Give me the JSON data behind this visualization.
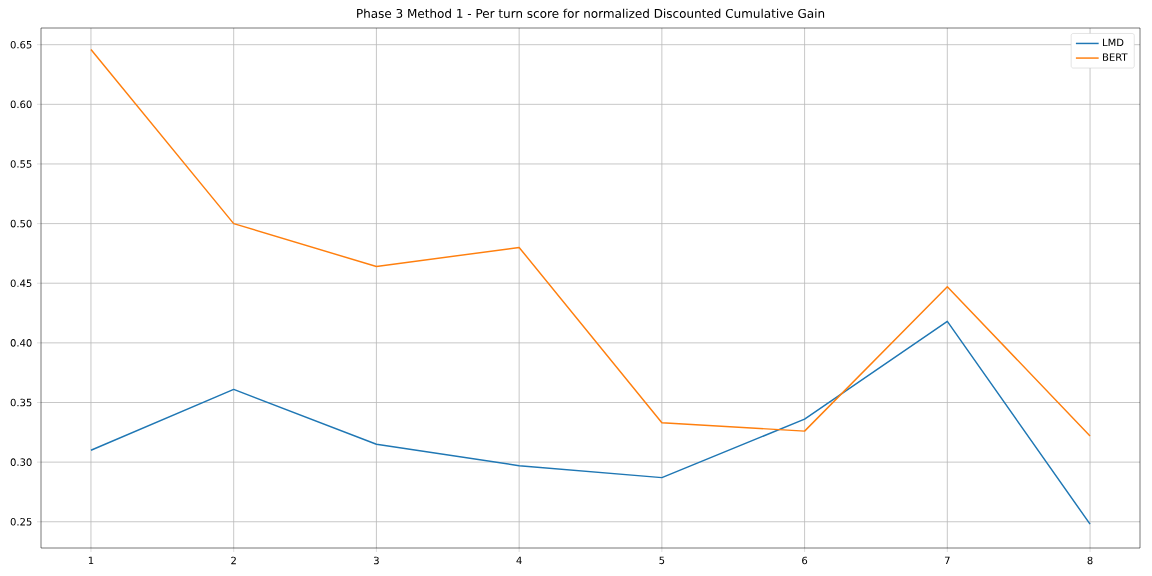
{
  "chart_data": {
    "type": "line",
    "title": "Phase 3 Method 1 - Per turn score for normalized Discounted Cumulative Gain",
    "x": [
      1,
      2,
      3,
      4,
      5,
      6,
      7,
      8
    ],
    "series": [
      {
        "name": "LMD",
        "color": "#1f77b4",
        "values": [
          0.31,
          0.361,
          0.315,
          0.297,
          0.287,
          0.336,
          0.418,
          0.248
        ]
      },
      {
        "name": "BERT",
        "color": "#ff7f0e",
        "values": [
          0.646,
          0.5,
          0.464,
          0.48,
          0.333,
          0.326,
          0.447,
          0.322
        ]
      }
    ],
    "xlim": [
      0.65,
      8.35
    ],
    "ylim": [
      0.228,
      0.664
    ],
    "xticks": [
      1,
      2,
      3,
      4,
      5,
      6,
      7,
      8
    ],
    "yticks": [
      {
        "value": 0.25,
        "label": "0.25"
      },
      {
        "value": 0.3,
        "label": "0.30"
      },
      {
        "value": 0.35,
        "label": "0.35"
      },
      {
        "value": 0.4,
        "label": "0.40"
      },
      {
        "value": 0.45,
        "label": "0.45"
      },
      {
        "value": 0.5,
        "label": "0.50"
      },
      {
        "value": 0.55,
        "label": "0.55"
      },
      {
        "value": 0.6,
        "label": "0.60"
      },
      {
        "value": 0.65,
        "label": "0.65"
      }
    ],
    "grid": true,
    "legend": "top right",
    "marker": "none",
    "line_style": "solid"
  }
}
